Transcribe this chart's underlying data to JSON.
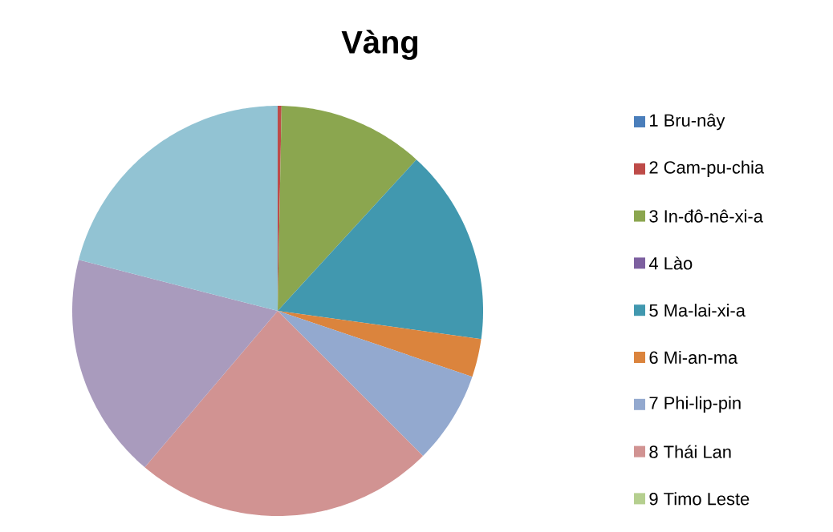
{
  "chart_data": {
    "type": "pie",
    "title": "Vàng",
    "categories": [
      "1 Bru-nây",
      "2 Cam-pu-chia",
      "3 In-đô-nê-xi-a",
      "4 Lào",
      "5 Ma-lai-xi-a",
      "6 Mi-an-ma",
      "7 Phi-lip-pin",
      "8 Thái Lan",
      "9 Timo Leste",
      null,
      null
    ],
    "values": [
      0,
      0.3,
      11.5,
      0,
      15.4,
      3.0,
      7.3,
      23.7,
      0,
      17.8,
      21.0
    ],
    "colors": [
      "#4a7ebb",
      "#be4b48",
      "#8ba64f",
      "#7d60a0",
      "#4198af",
      "#db843d",
      "#93a9cf",
      "#d19392",
      "#b5cf8f",
      "#a99bbd",
      "#92c3d3"
    ],
    "legend": "right"
  }
}
